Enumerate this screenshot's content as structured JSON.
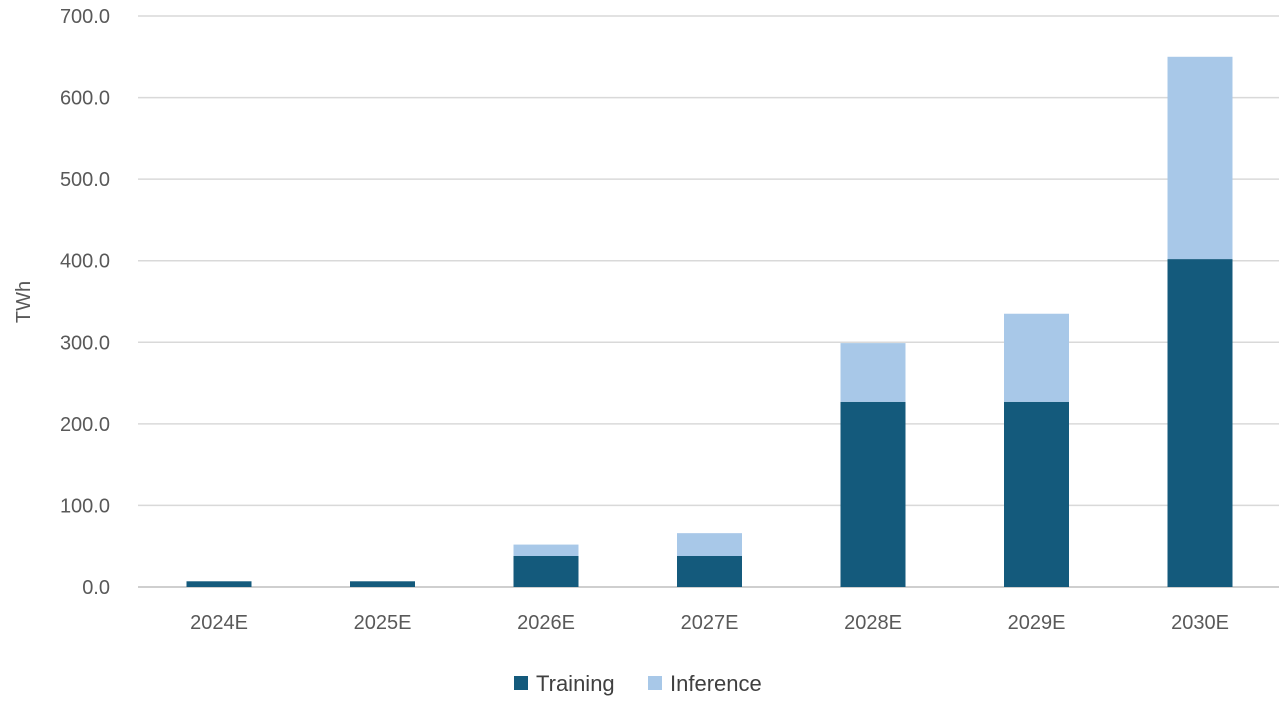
{
  "chart_data": {
    "type": "bar",
    "stacked": true,
    "categories": [
      "2024E",
      "2025E",
      "2026E",
      "2027E",
      "2028E",
      "2029E",
      "2030E"
    ],
    "series": [
      {
        "name": "Training",
        "color": "#145A7C",
        "values": [
          7,
          7,
          38,
          38,
          227,
          227,
          402
        ]
      },
      {
        "name": "Inference",
        "color": "#A8C8E8",
        "values": [
          0,
          0,
          14,
          28,
          72,
          108,
          248
        ]
      }
    ],
    "ylabel": "TWh",
    "xlabel": "",
    "ylim": [
      0,
      700
    ],
    "yticks": [
      "0.0",
      "100.0",
      "200.0",
      "300.0",
      "400.0",
      "500.0",
      "600.0",
      "700.0"
    ],
    "grid": true,
    "legend_position": "bottom-center"
  }
}
